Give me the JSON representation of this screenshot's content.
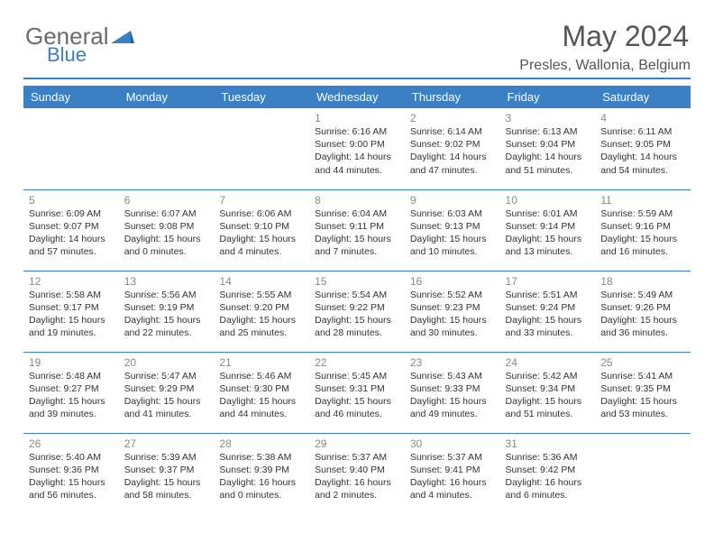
{
  "brand": {
    "general": "General",
    "blue": "Blue"
  },
  "title": "May 2024",
  "location": "Presles, Wallonia, Belgium",
  "colors": {
    "accent": "#3b7fc4",
    "text": "#333333",
    "muted": "#888888",
    "heading": "#555555",
    "background": "#ffffff"
  },
  "day_headers": [
    "Sunday",
    "Monday",
    "Tuesday",
    "Wednesday",
    "Thursday",
    "Friday",
    "Saturday"
  ],
  "weeks": [
    [
      {
        "n": "",
        "sr": "",
        "ss": "",
        "dl": ""
      },
      {
        "n": "",
        "sr": "",
        "ss": "",
        "dl": ""
      },
      {
        "n": "",
        "sr": "",
        "ss": "",
        "dl": ""
      },
      {
        "n": "1",
        "sr": "Sunrise: 6:16 AM",
        "ss": "Sunset: 9:00 PM",
        "dl": "Daylight: 14 hours and 44 minutes."
      },
      {
        "n": "2",
        "sr": "Sunrise: 6:14 AM",
        "ss": "Sunset: 9:02 PM",
        "dl": "Daylight: 14 hours and 47 minutes."
      },
      {
        "n": "3",
        "sr": "Sunrise: 6:13 AM",
        "ss": "Sunset: 9:04 PM",
        "dl": "Daylight: 14 hours and 51 minutes."
      },
      {
        "n": "4",
        "sr": "Sunrise: 6:11 AM",
        "ss": "Sunset: 9:05 PM",
        "dl": "Daylight: 14 hours and 54 minutes."
      }
    ],
    [
      {
        "n": "5",
        "sr": "Sunrise: 6:09 AM",
        "ss": "Sunset: 9:07 PM",
        "dl": "Daylight: 14 hours and 57 minutes."
      },
      {
        "n": "6",
        "sr": "Sunrise: 6:07 AM",
        "ss": "Sunset: 9:08 PM",
        "dl": "Daylight: 15 hours and 0 minutes."
      },
      {
        "n": "7",
        "sr": "Sunrise: 6:06 AM",
        "ss": "Sunset: 9:10 PM",
        "dl": "Daylight: 15 hours and 4 minutes."
      },
      {
        "n": "8",
        "sr": "Sunrise: 6:04 AM",
        "ss": "Sunset: 9:11 PM",
        "dl": "Daylight: 15 hours and 7 minutes."
      },
      {
        "n": "9",
        "sr": "Sunrise: 6:03 AM",
        "ss": "Sunset: 9:13 PM",
        "dl": "Daylight: 15 hours and 10 minutes."
      },
      {
        "n": "10",
        "sr": "Sunrise: 6:01 AM",
        "ss": "Sunset: 9:14 PM",
        "dl": "Daylight: 15 hours and 13 minutes."
      },
      {
        "n": "11",
        "sr": "Sunrise: 5:59 AM",
        "ss": "Sunset: 9:16 PM",
        "dl": "Daylight: 15 hours and 16 minutes."
      }
    ],
    [
      {
        "n": "12",
        "sr": "Sunrise: 5:58 AM",
        "ss": "Sunset: 9:17 PM",
        "dl": "Daylight: 15 hours and 19 minutes."
      },
      {
        "n": "13",
        "sr": "Sunrise: 5:56 AM",
        "ss": "Sunset: 9:19 PM",
        "dl": "Daylight: 15 hours and 22 minutes."
      },
      {
        "n": "14",
        "sr": "Sunrise: 5:55 AM",
        "ss": "Sunset: 9:20 PM",
        "dl": "Daylight: 15 hours and 25 minutes."
      },
      {
        "n": "15",
        "sr": "Sunrise: 5:54 AM",
        "ss": "Sunset: 9:22 PM",
        "dl": "Daylight: 15 hours and 28 minutes."
      },
      {
        "n": "16",
        "sr": "Sunrise: 5:52 AM",
        "ss": "Sunset: 9:23 PM",
        "dl": "Daylight: 15 hours and 30 minutes."
      },
      {
        "n": "17",
        "sr": "Sunrise: 5:51 AM",
        "ss": "Sunset: 9:24 PM",
        "dl": "Daylight: 15 hours and 33 minutes."
      },
      {
        "n": "18",
        "sr": "Sunrise: 5:49 AM",
        "ss": "Sunset: 9:26 PM",
        "dl": "Daylight: 15 hours and 36 minutes."
      }
    ],
    [
      {
        "n": "19",
        "sr": "Sunrise: 5:48 AM",
        "ss": "Sunset: 9:27 PM",
        "dl": "Daylight: 15 hours and 39 minutes."
      },
      {
        "n": "20",
        "sr": "Sunrise: 5:47 AM",
        "ss": "Sunset: 9:29 PM",
        "dl": "Daylight: 15 hours and 41 minutes."
      },
      {
        "n": "21",
        "sr": "Sunrise: 5:46 AM",
        "ss": "Sunset: 9:30 PM",
        "dl": "Daylight: 15 hours and 44 minutes."
      },
      {
        "n": "22",
        "sr": "Sunrise: 5:45 AM",
        "ss": "Sunset: 9:31 PM",
        "dl": "Daylight: 15 hours and 46 minutes."
      },
      {
        "n": "23",
        "sr": "Sunrise: 5:43 AM",
        "ss": "Sunset: 9:33 PM",
        "dl": "Daylight: 15 hours and 49 minutes."
      },
      {
        "n": "24",
        "sr": "Sunrise: 5:42 AM",
        "ss": "Sunset: 9:34 PM",
        "dl": "Daylight: 15 hours and 51 minutes."
      },
      {
        "n": "25",
        "sr": "Sunrise: 5:41 AM",
        "ss": "Sunset: 9:35 PM",
        "dl": "Daylight: 15 hours and 53 minutes."
      }
    ],
    [
      {
        "n": "26",
        "sr": "Sunrise: 5:40 AM",
        "ss": "Sunset: 9:36 PM",
        "dl": "Daylight: 15 hours and 56 minutes."
      },
      {
        "n": "27",
        "sr": "Sunrise: 5:39 AM",
        "ss": "Sunset: 9:37 PM",
        "dl": "Daylight: 15 hours and 58 minutes."
      },
      {
        "n": "28",
        "sr": "Sunrise: 5:38 AM",
        "ss": "Sunset: 9:39 PM",
        "dl": "Daylight: 16 hours and 0 minutes."
      },
      {
        "n": "29",
        "sr": "Sunrise: 5:37 AM",
        "ss": "Sunset: 9:40 PM",
        "dl": "Daylight: 16 hours and 2 minutes."
      },
      {
        "n": "30",
        "sr": "Sunrise: 5:37 AM",
        "ss": "Sunset: 9:41 PM",
        "dl": "Daylight: 16 hours and 4 minutes."
      },
      {
        "n": "31",
        "sr": "Sunrise: 5:36 AM",
        "ss": "Sunset: 9:42 PM",
        "dl": "Daylight: 16 hours and 6 minutes."
      },
      {
        "n": "",
        "sr": "",
        "ss": "",
        "dl": ""
      }
    ]
  ]
}
